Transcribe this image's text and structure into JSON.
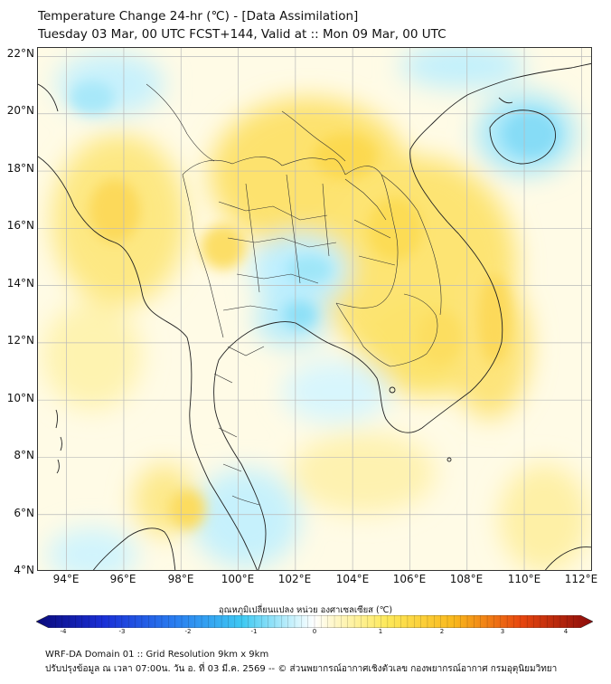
{
  "title": {
    "line1": "Temperature Change 24-hr (℃) - [Data Assimilation]",
    "line2": "Tuesday 03 Mar, 00 UTC FCST+144, Valid at :: Mon 09 Mar, 00 UTC"
  },
  "map": {
    "lat_labels": [
      "22°N",
      "20°N",
      "18°N",
      "16°N",
      "14°N",
      "12°N",
      "10°N",
      "8°N",
      "6°N",
      "4°N"
    ],
    "lon_labels": [
      "94°E",
      "96°E",
      "98°E",
      "100°E",
      "102°E",
      "104°E",
      "106°E",
      "108°E",
      "110°E",
      "112°E"
    ],
    "lat_range": [
      4,
      22.3
    ],
    "lon_range": [
      93,
      112.4
    ],
    "field_note": "mostly warming (yellow) over Indochina; cooling (cyan) near Hainan, central Thailand, Gulf of Thailand and south Andaman Sea"
  },
  "colorbar": {
    "title": "อุณหภูมิเปลี่ยนแปลง หน่วย องศาเซลเซียส (℃)",
    "ticks": [
      "-4",
      "-3",
      "-2",
      "-1",
      "0",
      "1",
      "2",
      "3",
      "4"
    ],
    "min": -4,
    "max": 4
  },
  "footer": {
    "line1": "WRF-DA Domain 01 :: Grid Resolution 9km x 9km",
    "line2": "ปรับปรุงข้อมูล ณ เวลา 07:00น. วัน อ. ที่ 03 มี.ค. 2569 -- © ส่วนพยากรณ์อากาศเชิงตัวเลข กองพยากรณ์อากาศ กรมอุตุนิยมวิทยา"
  }
}
